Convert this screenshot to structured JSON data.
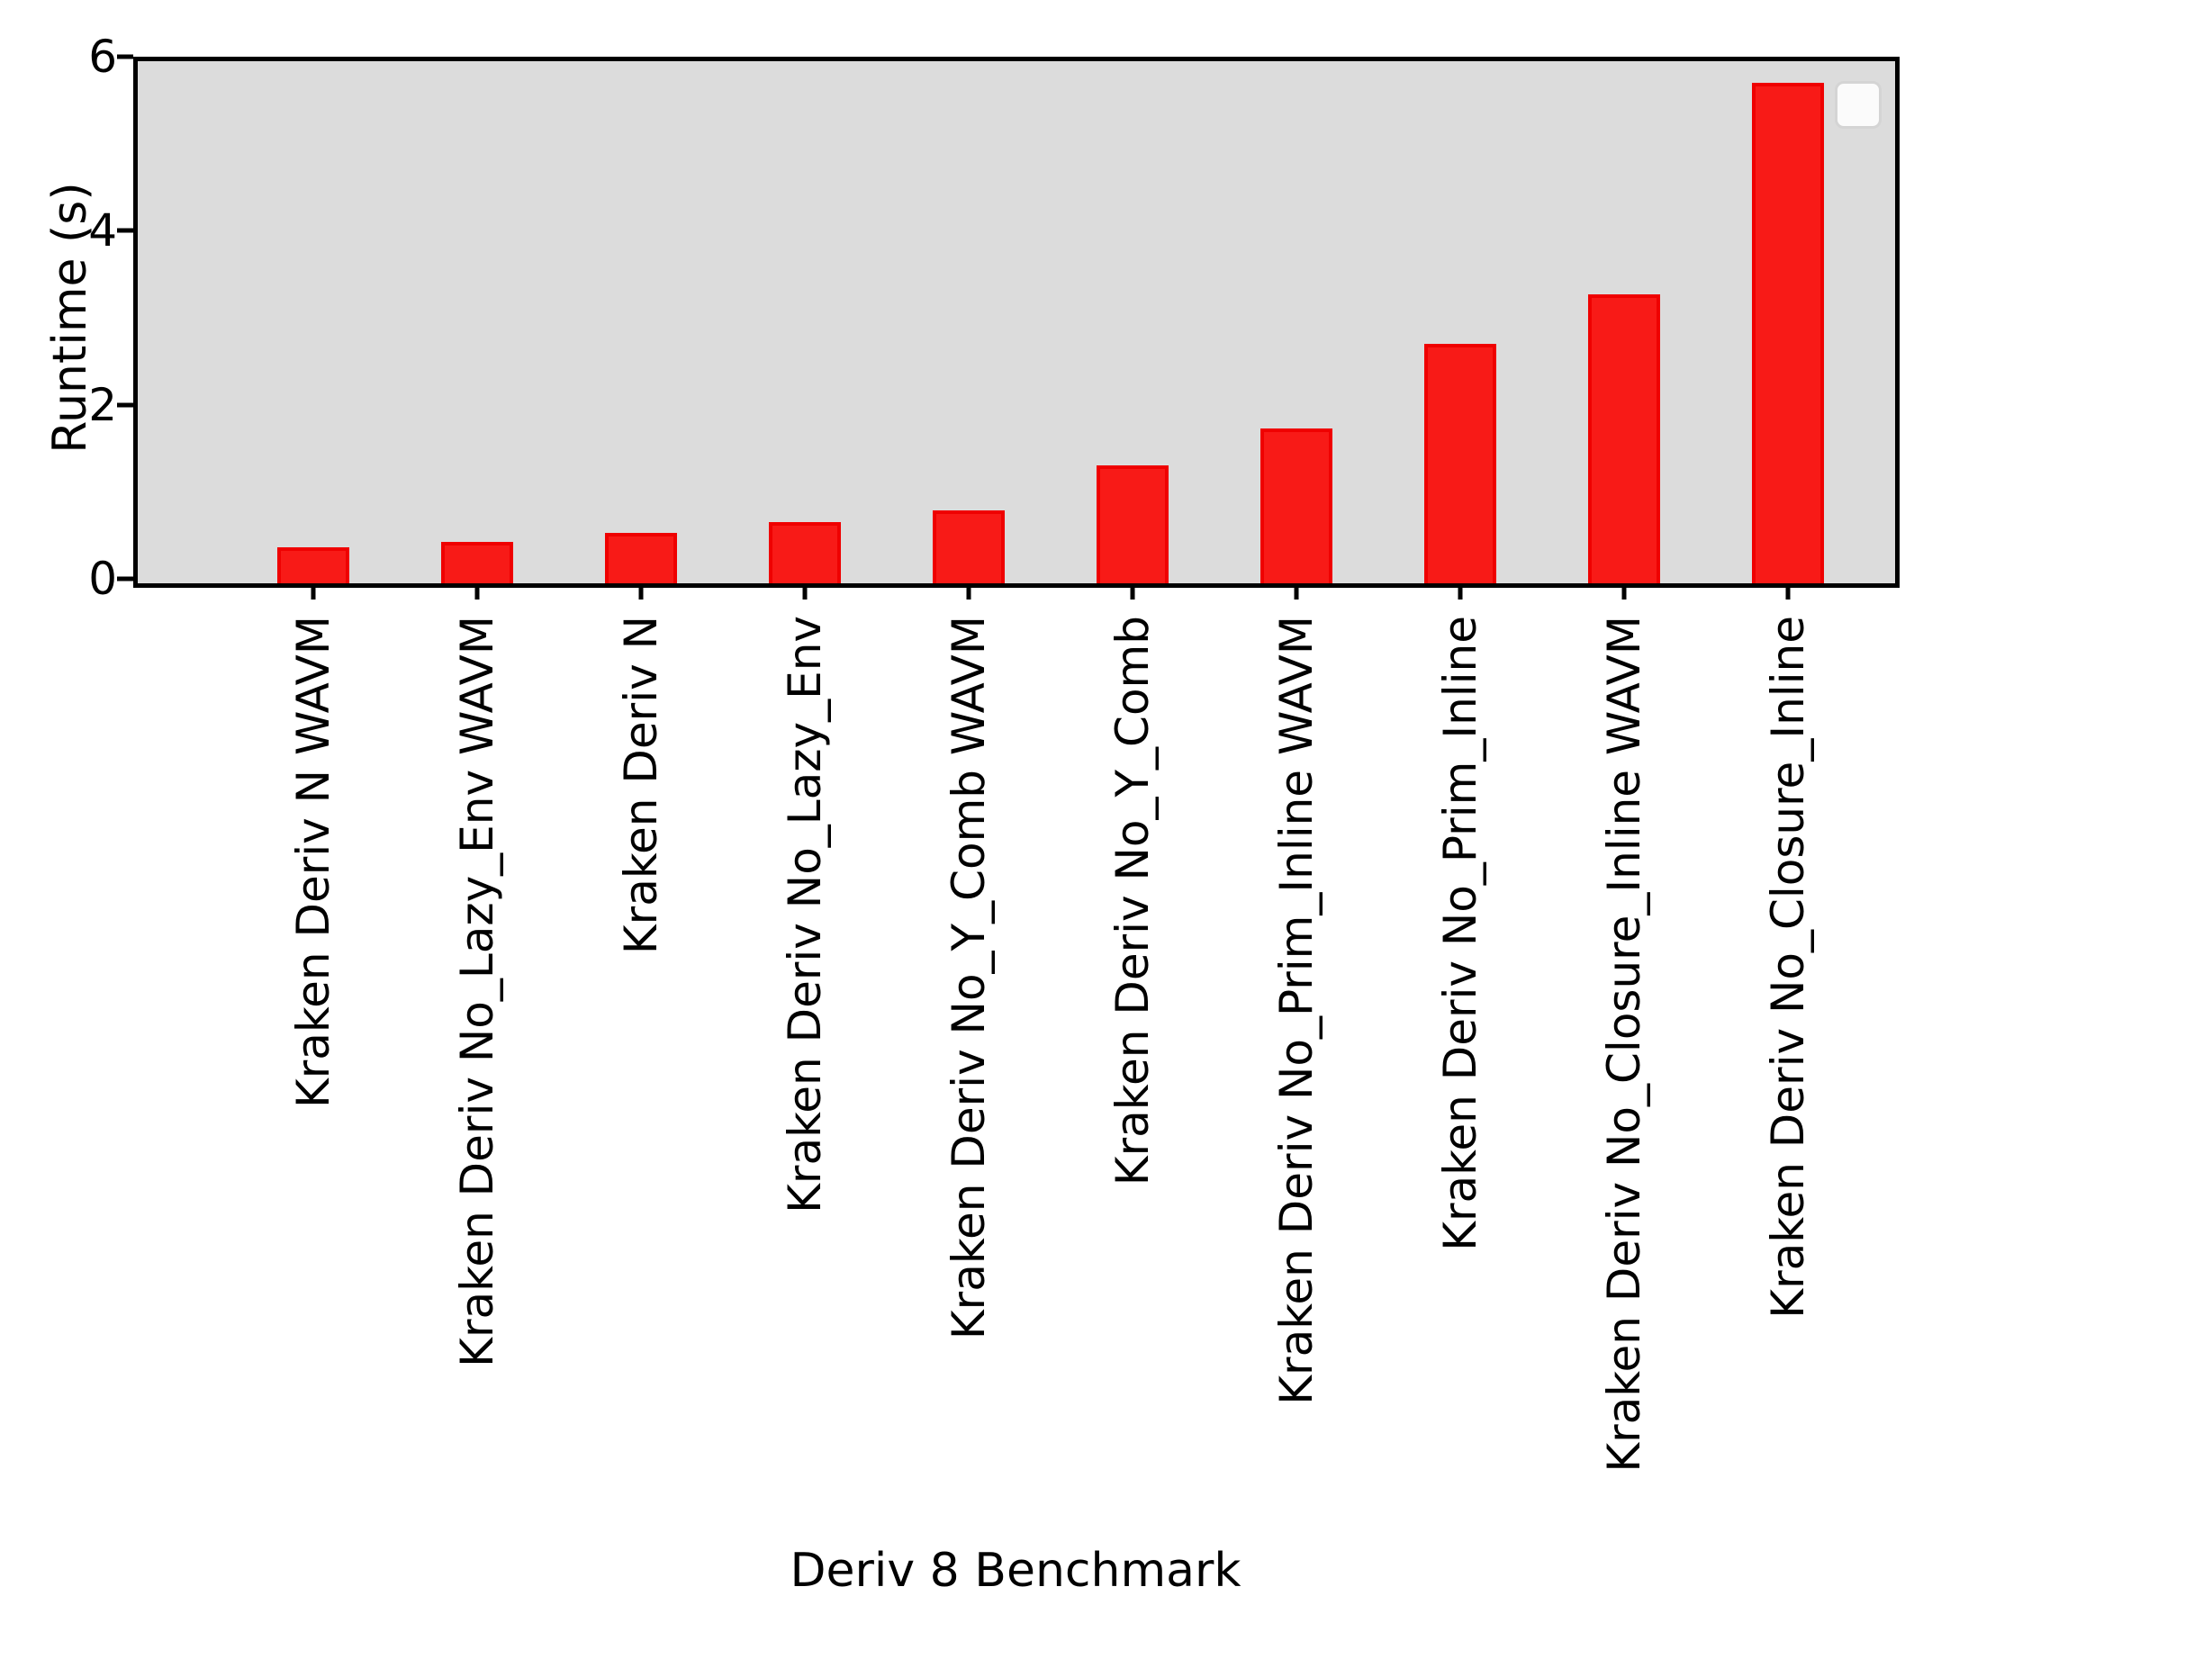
{
  "chart_data": {
    "type": "bar",
    "title": "",
    "xlabel": "Deriv 8 Benchmark",
    "ylabel": "Runtime (s)",
    "categories": [
      "Kraken Deriv N WAVM",
      "Kraken Deriv No_Lazy_Env WAVM",
      "Kraken Deriv N",
      "Kraken Deriv No_Lazy_Env",
      "Kraken Deriv No_Y_Comb WAVM",
      "Kraken Deriv No_Y_Comb",
      "Kraken Deriv No_Prim_Inline WAVM",
      "Kraken Deriv No_Prim_Inline",
      "Kraken Deriv No_Closure_Inline WAVM",
      "Kraken Deriv No_Closure_Inline"
    ],
    "values": [
      0.41,
      0.48,
      0.58,
      0.7,
      0.84,
      1.36,
      1.78,
      2.75,
      3.32,
      5.75
    ],
    "ylim": [
      0,
      6
    ],
    "yticks": [
      0,
      2,
      4,
      6
    ],
    "grid": false,
    "legend": "empty-box-top-right",
    "colors": {
      "bar_fill": "#f81a17",
      "bar_edge": "#ef0101",
      "plot_background": "#dcdcdc",
      "figure_background": "#ffffff",
      "axis": "#000000"
    }
  }
}
